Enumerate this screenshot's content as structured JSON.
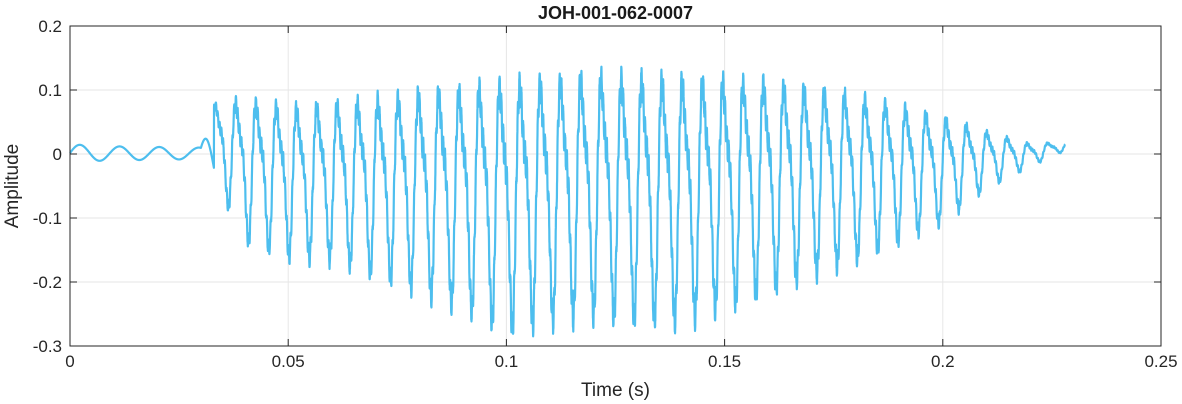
{
  "chart_data": {
    "type": "line",
    "title": "JOH-001-062-0007",
    "xlabel": "Time (s)",
    "ylabel": "Amplitude",
    "xlim": [
      0,
      0.25
    ],
    "ylim": [
      -0.3,
      0.2
    ],
    "xticks": [
      0,
      0.05,
      0.1,
      0.15,
      0.2,
      0.25
    ],
    "xtick_labels": [
      "0",
      "0.05",
      "0.1",
      "0.15",
      "0.2",
      "0.25"
    ],
    "yticks": [
      -0.3,
      -0.2,
      -0.1,
      0,
      0.1,
      0.2
    ],
    "ytick_labels": [
      "-0.3",
      "-0.2",
      "-0.1",
      "0",
      "0.1",
      "0.2"
    ],
    "grid": true,
    "line_color": "#4DBEEE",
    "series": [
      {
        "x_start": 0,
        "x_end": 0.228,
        "envelope": {
          "t": [
            0,
            0.01,
            0.03,
            0.033,
            0.04,
            0.05,
            0.06,
            0.08,
            0.1,
            0.12,
            0.14,
            0.16,
            0.18,
            0.19,
            0.2,
            0.21,
            0.22,
            0.228
          ],
          "max": [
            0.015,
            0.012,
            0.01,
            0.09,
            0.11,
            0.1,
            0.105,
            0.13,
            0.155,
            0.165,
            0.16,
            0.15,
            0.12,
            0.1,
            0.075,
            0.045,
            0.02,
            0.02
          ],
          "min": [
            -0.012,
            -0.01,
            -0.008,
            -0.04,
            -0.14,
            -0.165,
            -0.17,
            -0.22,
            -0.28,
            -0.26,
            -0.27,
            -0.22,
            -0.17,
            -0.14,
            -0.11,
            -0.055,
            -0.02,
            0.005
          ]
        }
      }
    ]
  }
}
